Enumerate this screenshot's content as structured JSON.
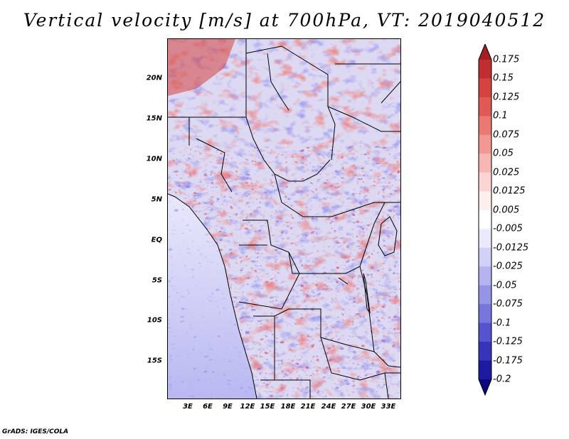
{
  "title": "Vertical velocity [m/s] at 700hPa, VT: 2019040512",
  "footer": "GrADS: IGES/COLA",
  "lat_labels": [
    "20N",
    "15N",
    "10N",
    "5N",
    "EQ",
    "5S",
    "10S",
    "15S"
  ],
  "lat_values": [
    20,
    15,
    10,
    5,
    0,
    -5,
    -10,
    -15
  ],
  "lon_labels": [
    "3E",
    "6E",
    "9E",
    "12E",
    "15E",
    "18E",
    "21E",
    "24E",
    "27E",
    "30E",
    "33E"
  ],
  "lon_values": [
    3,
    6,
    9,
    12,
    15,
    18,
    21,
    24,
    27,
    30,
    33
  ],
  "map_extent": {
    "lon_min": 0.5,
    "lon_max": 34.5,
    "lat_min": -19.5,
    "lat_max": 24.5
  },
  "colorbar": {
    "labels": [
      "0.175",
      "0.15",
      "0.125",
      "0.1",
      "0.075",
      "0.05",
      "0.025",
      "0.0125",
      "0.005",
      "-0.005",
      "-0.0125",
      "-0.025",
      "-0.05",
      "-0.075",
      "-0.1",
      "-0.125",
      "-0.175",
      "-0.2"
    ],
    "colors": [
      "#a51e22",
      "#c02e31",
      "#d4433f",
      "#e05a55",
      "#ea7873",
      "#f29893",
      "#f8b7b3",
      "#fcd5d2",
      "#feeeec",
      "#ffffff",
      "#eaeafc",
      "#d1d1f7",
      "#b4b3f0",
      "#9594e6",
      "#7776dc",
      "#5554cd",
      "#3634b9",
      "#1d1aa0",
      "#0c0880"
    ]
  }
}
